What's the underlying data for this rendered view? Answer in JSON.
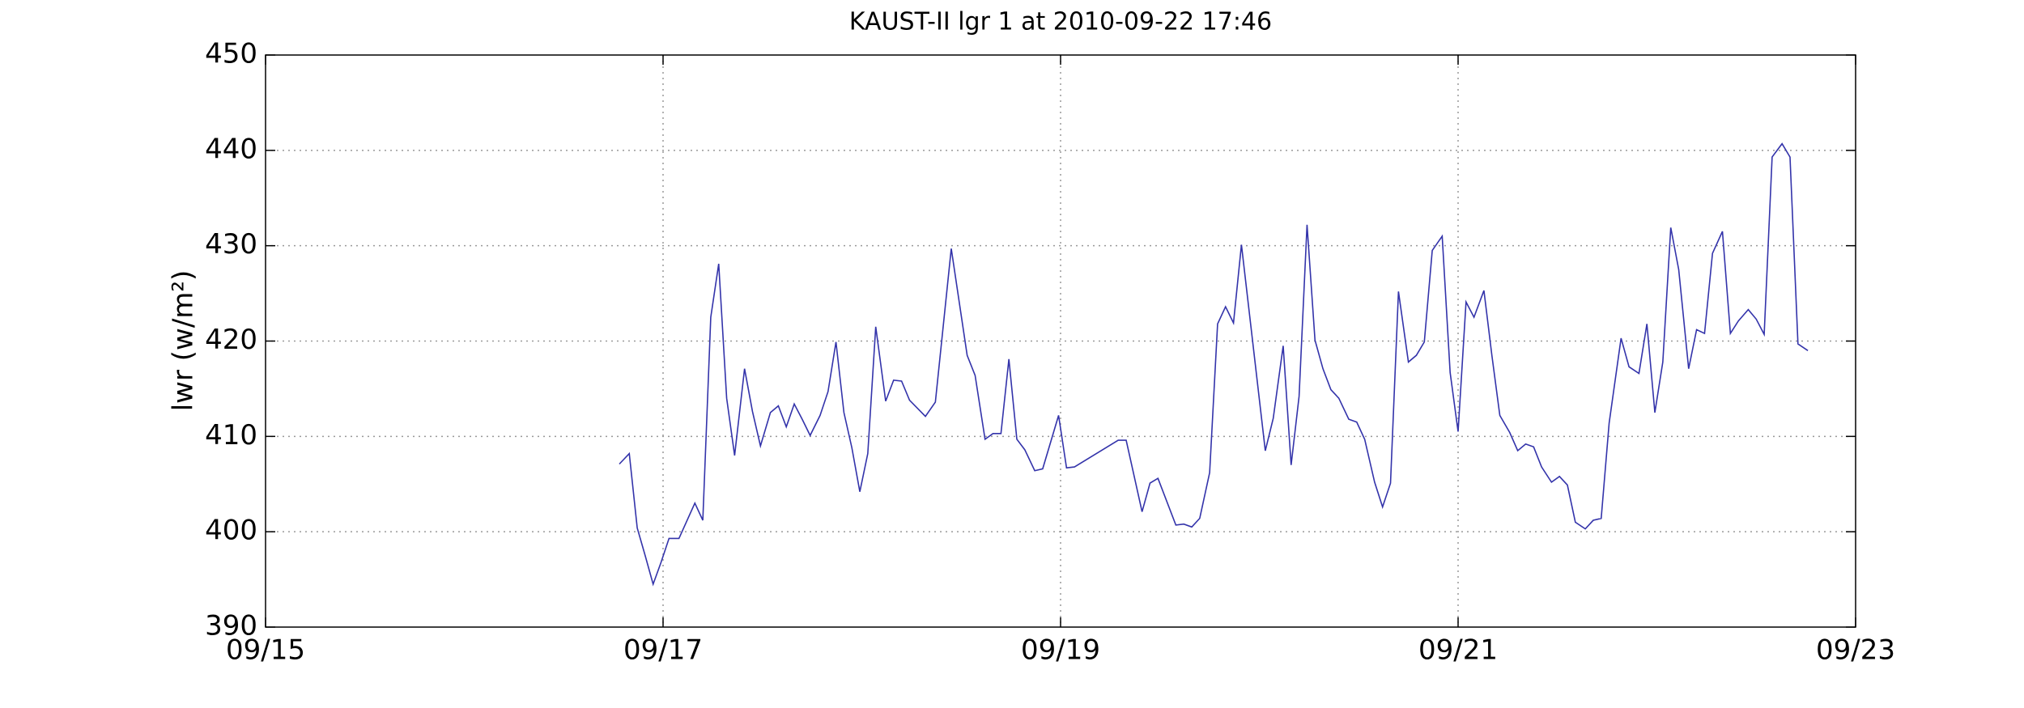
{
  "chart_data": {
    "type": "line",
    "title": "KAUST-II lgr 1 at 2010-09-22 17:46",
    "y_label": "lwr (w/m²)",
    "xlim": [
      15,
      23
    ],
    "xticks": [
      {
        "value": 15,
        "label": "09/15"
      },
      {
        "value": 17,
        "label": "09/17"
      },
      {
        "value": 19,
        "label": "09/19"
      },
      {
        "value": 21,
        "label": "09/21"
      },
      {
        "value": 23,
        "label": "09/23"
      }
    ],
    "ylim": [
      390,
      450
    ],
    "yticks": [
      390,
      400,
      410,
      420,
      430,
      440,
      450
    ],
    "grid": true,
    "series": [
      {
        "color": "#3333aa",
        "x": [
          16.78,
          16.83,
          16.87,
          16.91,
          16.95,
          16.99,
          17.03,
          17.08,
          17.16,
          17.2,
          17.24,
          17.28,
          17.32,
          17.36,
          17.41,
          17.45,
          17.49,
          17.54,
          17.58,
          17.62,
          17.66,
          17.7,
          17.74,
          17.79,
          17.83,
          17.87,
          17.91,
          17.95,
          17.99,
          18.03,
          18.07,
          18.12,
          18.16,
          18.2,
          18.24,
          18.32,
          18.37,
          18.45,
          18.53,
          18.57,
          18.62,
          18.66,
          18.7,
          18.74,
          18.78,
          18.82,
          18.87,
          18.91,
          18.99,
          19.03,
          19.07,
          19.29,
          19.33,
          19.41,
          19.45,
          19.49,
          19.58,
          19.62,
          19.66,
          19.7,
          19.75,
          19.79,
          19.83,
          19.87,
          19.91,
          20.03,
          20.07,
          20.12,
          20.16,
          20.2,
          20.24,
          20.28,
          20.32,
          20.36,
          20.4,
          20.45,
          20.49,
          20.53,
          20.58,
          20.62,
          20.66,
          20.7,
          20.75,
          20.79,
          20.83,
          20.87,
          20.92,
          20.96,
          21.0,
          21.04,
          21.08,
          21.13,
          21.17,
          21.21,
          21.26,
          21.3,
          21.34,
          21.38,
          21.42,
          21.47,
          21.51,
          21.55,
          21.59,
          21.64,
          21.68,
          21.72,
          21.76,
          21.82,
          21.86,
          21.91,
          21.95,
          21.99,
          22.03,
          22.07,
          22.11,
          22.16,
          22.2,
          22.24,
          22.28,
          22.33,
          22.37,
          22.41,
          22.46,
          22.5,
          22.54,
          22.58,
          22.63,
          22.67,
          22.71,
          22.76
        ],
        "values": [
          407.1,
          408.2,
          400.4,
          397.5,
          394.5,
          396.8,
          399.3,
          399.3,
          403,
          401.2,
          422.5,
          428.1,
          414,
          408,
          417.1,
          412.6,
          409,
          412.5,
          413.2,
          411,
          413.4,
          411.8,
          410.1,
          412.2,
          414.7,
          419.9,
          412.5,
          408.8,
          404.2,
          408.2,
          421.5,
          413.7,
          415.9,
          415.8,
          413.8,
          412.1,
          413.6,
          429.7,
          418.5,
          416.4,
          409.7,
          410.3,
          410.3,
          418.1,
          409.7,
          408.6,
          406.4,
          406.6,
          412.2,
          406.7,
          406.8,
          409.6,
          409.6,
          402.1,
          405.1,
          405.6,
          400.7,
          400.8,
          400.5,
          401.4,
          406.2,
          421.8,
          423.6,
          421.9,
          430.1,
          408.5,
          411.9,
          419.5,
          407,
          414.2,
          432.2,
          420.1,
          417.1,
          414.9,
          414,
          411.8,
          411.5,
          409.7,
          405.2,
          402.6,
          405.1,
          425.2,
          417.8,
          418.5,
          419.9,
          429.5,
          431,
          416.7,
          410.5,
          424.1,
          422.5,
          425.3,
          418.5,
          412.2,
          410.4,
          408.5,
          409.2,
          408.9,
          406.8,
          405.2,
          405.8,
          404.9,
          401,
          400.3,
          401.2,
          401.4,
          411.4,
          420.3,
          417.3,
          416.6,
          421.8,
          412.5,
          417.8,
          431.9,
          427.5,
          417.1,
          421.2,
          420.8,
          429.2,
          431.5,
          420.8,
          422.1,
          423.3,
          422.3,
          420.7,
          439.3,
          440.7,
          439.3,
          419.7,
          419
        ]
      }
    ]
  }
}
